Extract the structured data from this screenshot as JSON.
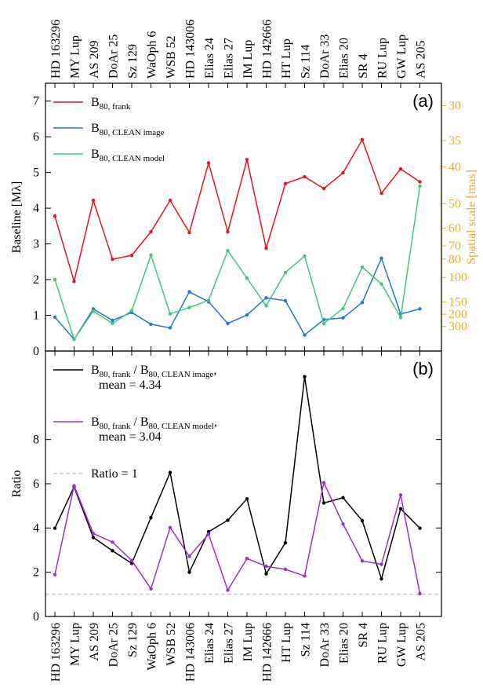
{
  "chart_data": [
    {
      "type": "line",
      "panel_label": "(a)",
      "categories": [
        "HD 163296",
        "MY Lup",
        "AS 209",
        "DoAr 25",
        "Sz 129",
        "WaOph 6",
        "WSB 52",
        "HD 143006",
        "Elias 24",
        "Elias 27",
        "IM Lup",
        "HD 142666",
        "HT Lup",
        "Sz 114",
        "DoAr 33",
        "Elias 20",
        "SR 4",
        "RU Lup",
        "GW Lup",
        "AS 205"
      ],
      "ylabel": "Baseline [Mλ]",
      "y2label": "Spatial scale [mas]",
      "y2color": "#e6b030",
      "ylim": [
        0,
        7.5
      ],
      "yticks": [
        0,
        1,
        2,
        3,
        4,
        5,
        6,
        7
      ],
      "y2scale": "inverse",
      "y2lim": [
        27.5,
        null
      ],
      "y2ticks": [
        30,
        35,
        40,
        50,
        60,
        70,
        80,
        100,
        150,
        200,
        300
      ],
      "series": [
        {
          "name_parts": [
            {
              "text": "B"
            },
            {
              "text": "80, frank",
              "sub": true
            }
          ],
          "color": "#e8161b",
          "values": [
            3.78,
            1.95,
            4.22,
            2.57,
            2.68,
            3.34,
            4.22,
            3.32,
            5.27,
            3.34,
            5.36,
            2.88,
            4.69,
            4.88,
            4.55,
            4.99,
            5.92,
            4.42,
            5.1,
            4.74
          ]
        },
        {
          "name_parts": [
            {
              "text": "B"
            },
            {
              "text": "80, CLEAN image",
              "sub": true
            }
          ],
          "color": "#1f78d4",
          "values": [
            0.95,
            0.33,
            1.18,
            0.86,
            1.08,
            0.75,
            0.65,
            1.66,
            1.38,
            0.77,
            1.01,
            1.49,
            1.41,
            0.45,
            0.88,
            0.93,
            1.36,
            2.6,
            1.04,
            1.18
          ]
        },
        {
          "name_parts": [
            {
              "text": "B"
            },
            {
              "text": "80, CLEAN model",
              "sub": true
            }
          ],
          "color": "#41c77d",
          "values": [
            2.0,
            0.33,
            1.12,
            0.77,
            1.13,
            2.69,
            1.04,
            1.22,
            1.42,
            2.81,
            2.04,
            1.27,
            2.2,
            2.66,
            0.77,
            1.19,
            2.35,
            1.88,
            0.94,
            4.62
          ]
        }
      ]
    },
    {
      "type": "line",
      "panel_label": "(b)",
      "categories": [
        "HD 163296",
        "MY Lup",
        "AS 209",
        "DoAr 25",
        "Sz 129",
        "WaOph 6",
        "WSB 52",
        "HD 143006",
        "Elias 24",
        "Elias 27",
        "IM Lup",
        "HD 142666",
        "HT Lup",
        "Sz 114",
        "DoAr 33",
        "Elias 20",
        "SR 4",
        "RU Lup",
        "GW Lup",
        "AS 205"
      ],
      "ylabel": "Ratio",
      "ylim": [
        0,
        12
      ],
      "yticks": [
        0,
        2,
        4,
        6,
        8
      ],
      "series": [
        {
          "name_parts": [
            {
              "text": "B"
            },
            {
              "text": "80, frank",
              "sub": true
            },
            {
              "text": " / B"
            },
            {
              "text": "80, CLEAN image",
              "sub": true
            },
            {
              "text": ","
            }
          ],
          "name_line2": "mean = 4.34",
          "color": "#000000",
          "values": [
            3.99,
            5.86,
            3.57,
            2.97,
            2.4,
            4.47,
            6.51,
            2.0,
            3.83,
            4.35,
            5.32,
            1.93,
            3.33,
            10.84,
            5.13,
            5.37,
            4.33,
            1.7,
            4.87,
            3.99
          ]
        },
        {
          "name_parts": [
            {
              "text": "B"
            },
            {
              "text": "80, frank",
              "sub": true
            },
            {
              "text": " / B"
            },
            {
              "text": "80, CLEAN model",
              "sub": true
            },
            {
              "text": ","
            }
          ],
          "name_line2": "mean = 3.04",
          "color": "#9b30d0",
          "values": [
            1.89,
            5.91,
            3.75,
            3.36,
            2.53,
            1.25,
            4.02,
            2.72,
            3.72,
            1.19,
            2.62,
            2.27,
            2.13,
            1.83,
            6.05,
            4.18,
            2.51,
            2.36,
            5.49,
            1.03
          ]
        }
      ],
      "reference_line": {
        "value": 1,
        "label": "Ratio = 1",
        "color": "#aaaaaa"
      }
    }
  ]
}
